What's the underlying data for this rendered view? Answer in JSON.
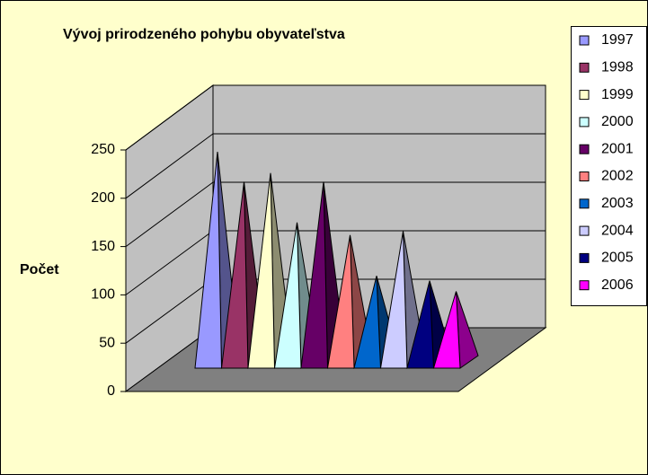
{
  "chart_data": {
    "type": "pyramid",
    "title": "Vývoj prirodzeného pohybu obyvateľstva",
    "ylabel": "Počet",
    "ylim": [
      0,
      250
    ],
    "yticks": [
      0,
      50,
      100,
      150,
      200,
      250
    ],
    "grid": true,
    "legend": "right",
    "series": [
      {
        "name": "1997",
        "color": "#9999ff",
        "values": [
          225
        ]
      },
      {
        "name": "1998",
        "color": "#993366",
        "values": [
          194
        ]
      },
      {
        "name": "1999",
        "color": "#ffffcc",
        "values": [
          203
        ]
      },
      {
        "name": "2000",
        "color": "#ccffff",
        "values": [
          152
        ]
      },
      {
        "name": "2001",
        "color": "#660066",
        "values": [
          194
        ]
      },
      {
        "name": "2002",
        "color": "#ff8080",
        "values": [
          139
        ]
      },
      {
        "name": "2003",
        "color": "#0066cc",
        "values": [
          97
        ]
      },
      {
        "name": "2004",
        "color": "#ccccff",
        "values": [
          143
        ]
      },
      {
        "name": "2005",
        "color": "#000080",
        "values": [
          92
        ]
      },
      {
        "name": "2006",
        "color": "#ff00ff",
        "values": [
          81
        ]
      }
    ]
  }
}
